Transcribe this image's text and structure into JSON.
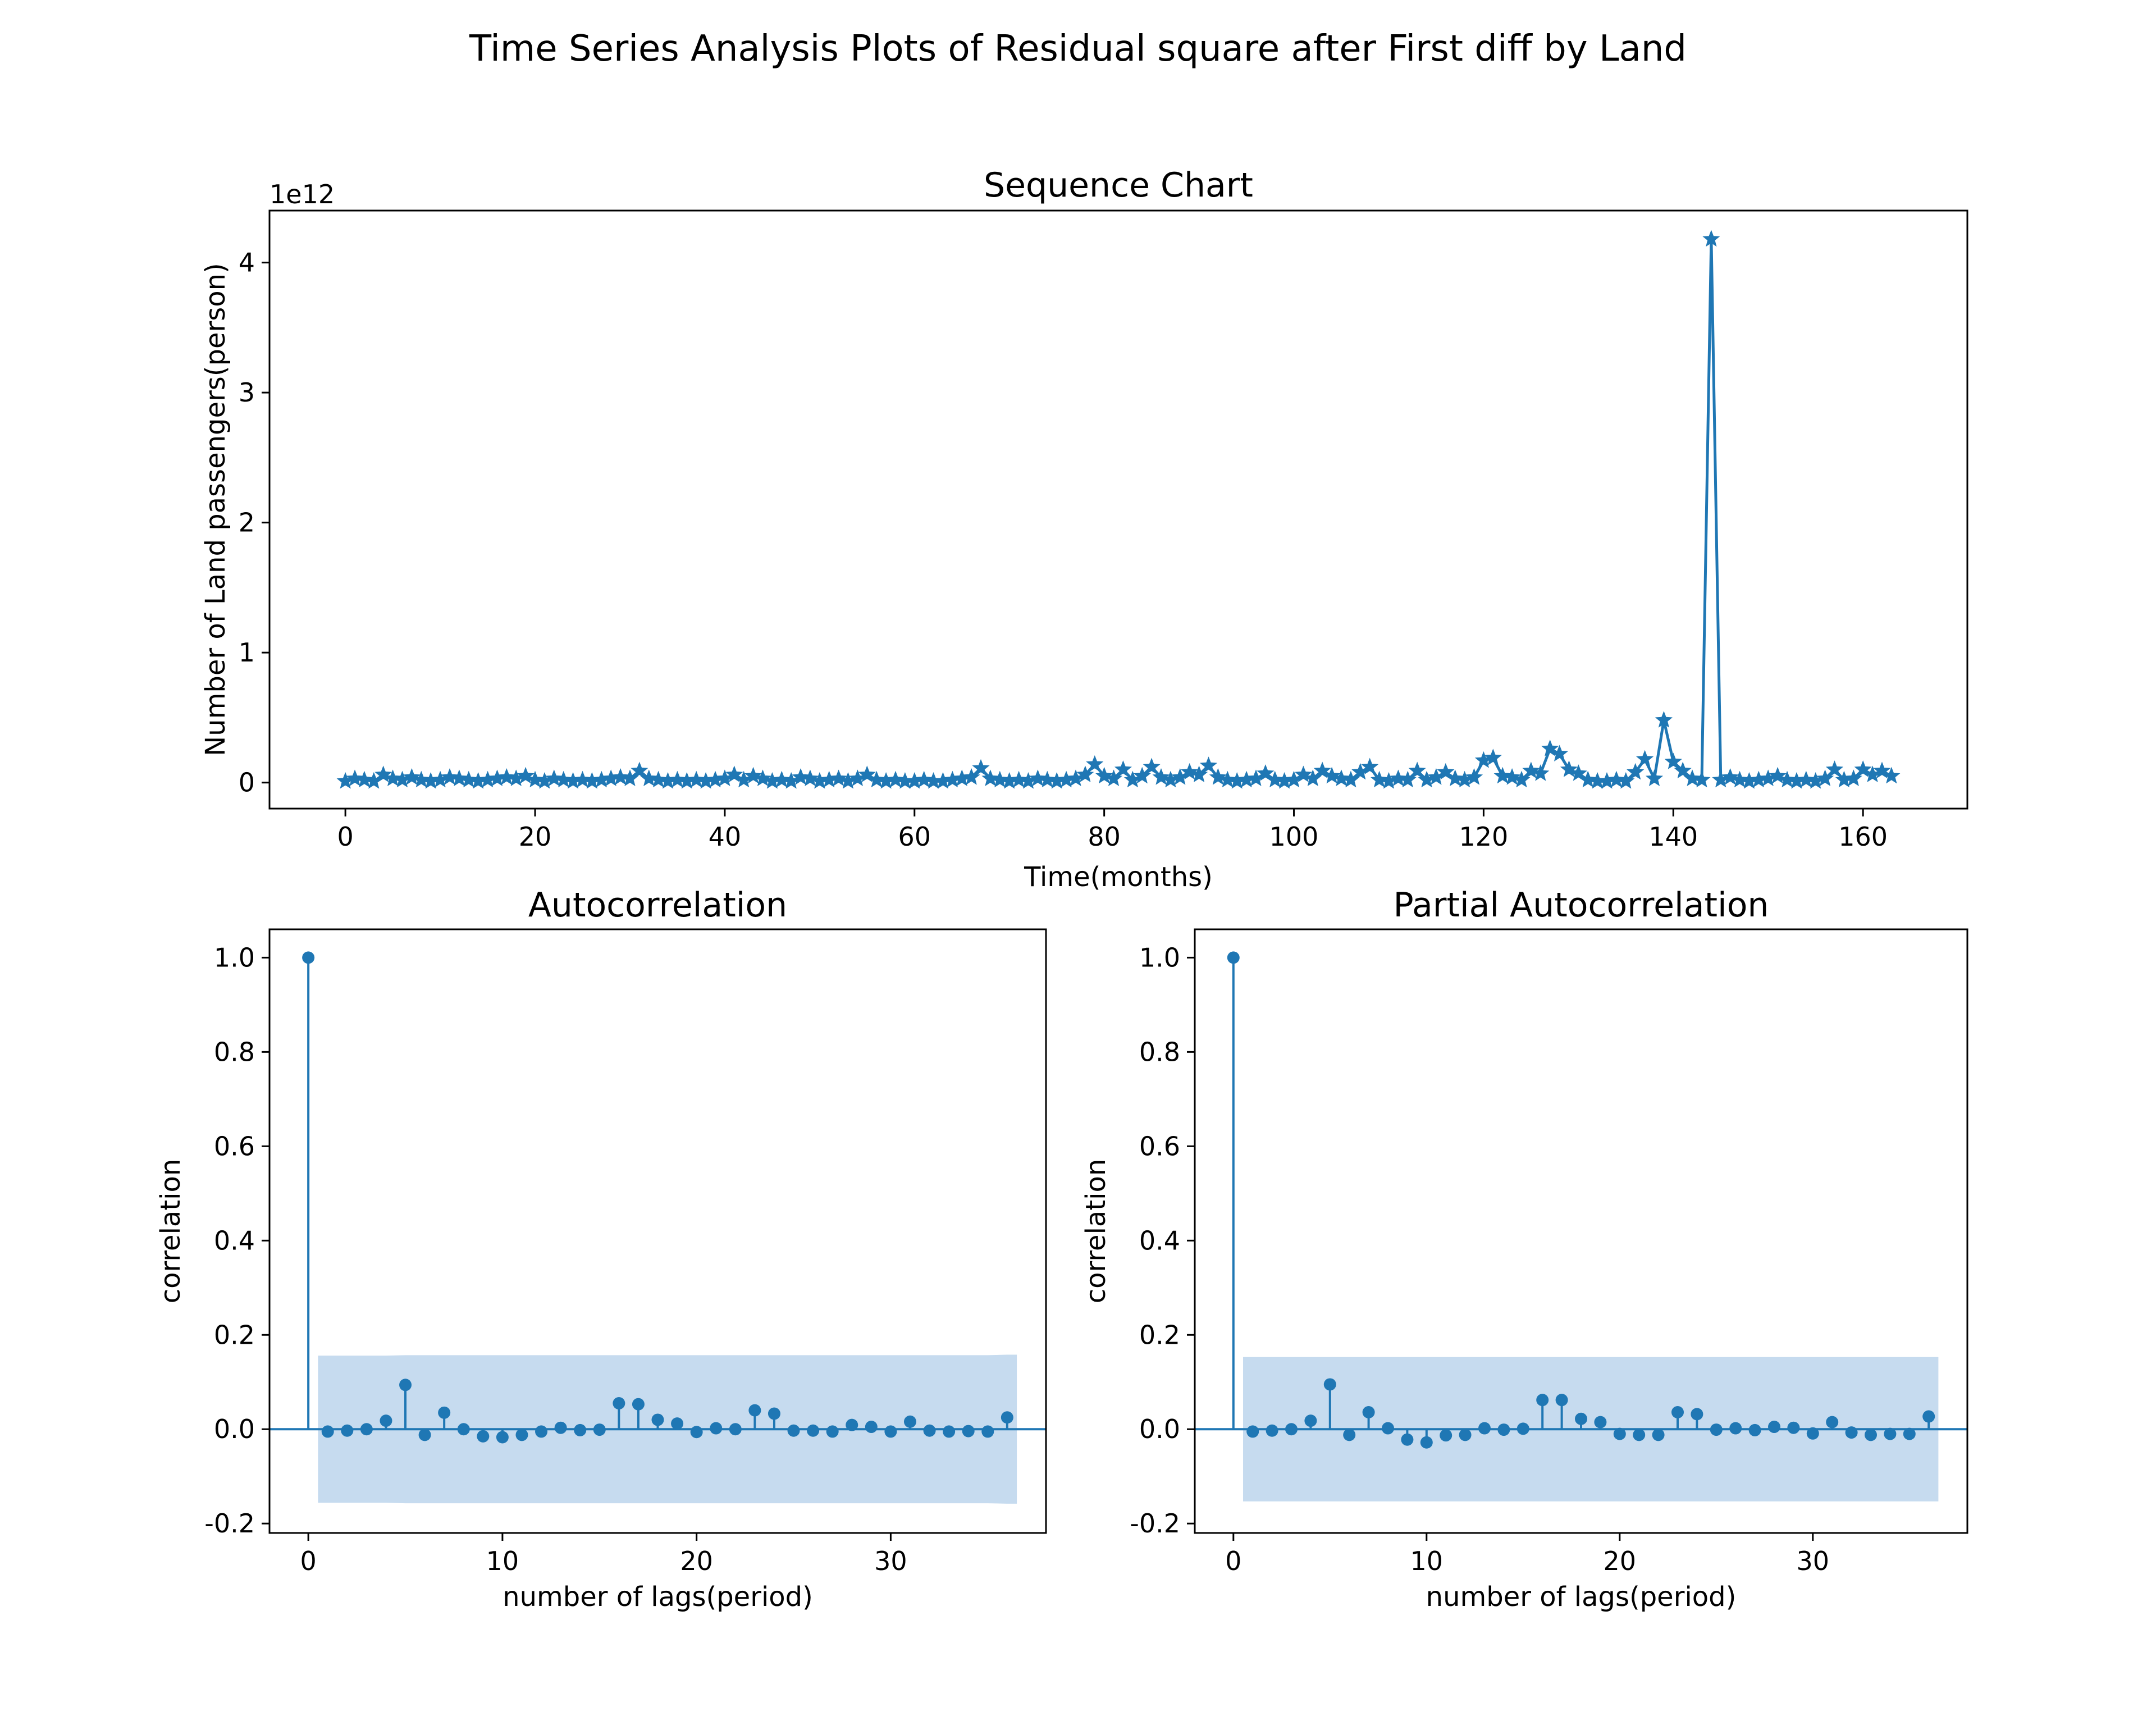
{
  "figure": {
    "title": "Time Series Analysis Plots of Residual square after First diff by Land"
  },
  "colors": {
    "series": "#1f77b4",
    "band": "#c6dbef"
  },
  "chart_data": [
    {
      "type": "line",
      "title": "Sequence Chart",
      "xlabel": "Time(months)",
      "ylabel": "Number of Land passengers(person)",
      "y_offset_label": "1e12",
      "marker": "star",
      "xlim": [
        -8,
        171
      ],
      "ylim": [
        -0.2,
        4.4
      ],
      "xticks": [
        0,
        20,
        40,
        60,
        80,
        100,
        120,
        140,
        160
      ],
      "yticks": [
        0,
        1,
        2,
        3,
        4
      ],
      "x_start": 0,
      "values": [
        0.01,
        0.03,
        0.02,
        0.01,
        0.06,
        0.03,
        0.02,
        0.04,
        0.02,
        0.01,
        0.02,
        0.04,
        0.03,
        0.02,
        0.01,
        0.02,
        0.03,
        0.04,
        0.03,
        0.05,
        0.02,
        0.01,
        0.03,
        0.02,
        0.01,
        0.02,
        0.01,
        0.02,
        0.03,
        0.04,
        0.03,
        0.09,
        0.03,
        0.02,
        0.01,
        0.02,
        0.01,
        0.02,
        0.01,
        0.02,
        0.03,
        0.06,
        0.02,
        0.05,
        0.03,
        0.01,
        0.02,
        0.01,
        0.04,
        0.03,
        0.01,
        0.02,
        0.03,
        0.01,
        0.03,
        0.06,
        0.02,
        0.01,
        0.02,
        0.01,
        0.01,
        0.02,
        0.01,
        0.01,
        0.02,
        0.03,
        0.04,
        0.11,
        0.03,
        0.02,
        0.01,
        0.02,
        0.01,
        0.03,
        0.02,
        0.01,
        0.02,
        0.03,
        0.06,
        0.14,
        0.05,
        0.03,
        0.1,
        0.02,
        0.05,
        0.12,
        0.04,
        0.02,
        0.04,
        0.08,
        0.06,
        0.13,
        0.04,
        0.02,
        0.01,
        0.02,
        0.03,
        0.07,
        0.02,
        0.01,
        0.02,
        0.06,
        0.03,
        0.09,
        0.05,
        0.03,
        0.02,
        0.08,
        0.12,
        0.02,
        0.01,
        0.03,
        0.02,
        0.09,
        0.02,
        0.04,
        0.08,
        0.03,
        0.02,
        0.04,
        0.17,
        0.19,
        0.05,
        0.04,
        0.02,
        0.09,
        0.07,
        0.26,
        0.22,
        0.1,
        0.07,
        0.02,
        0.01,
        0.01,
        0.02,
        0.01,
        0.08,
        0.18,
        0.03,
        0.48,
        0.16,
        0.09,
        0.03,
        0.02,
        4.18,
        0.02,
        0.04,
        0.02,
        0.01,
        0.02,
        0.03,
        0.05,
        0.02,
        0.01,
        0.02,
        0.01,
        0.03,
        0.1,
        0.02,
        0.03,
        0.1,
        0.06,
        0.09,
        0.05
      ]
    },
    {
      "type": "scatter",
      "style": "stem",
      "title": "Autocorrelation",
      "xlabel": "number of lags(period)",
      "ylabel": "correlation",
      "xlim": [
        -2,
        38
      ],
      "ylim": [
        -0.22,
        1.06
      ],
      "xticks": [
        0,
        10,
        20,
        30
      ],
      "ytick_labels": [
        "-0.2",
        "0.0",
        "0.2",
        "0.4",
        "0.6",
        "0.8",
        "1.0"
      ],
      "lags": [
        0,
        1,
        2,
        3,
        4,
        5,
        6,
        7,
        8,
        9,
        10,
        11,
        12,
        13,
        14,
        15,
        16,
        17,
        18,
        19,
        20,
        21,
        22,
        23,
        24,
        25,
        26,
        27,
        28,
        29,
        30,
        31,
        32,
        33,
        34,
        35,
        36
      ],
      "values": [
        1.0,
        -0.005,
        -0.003,
        0.0,
        0.018,
        0.094,
        -0.012,
        0.035,
        0.0,
        -0.015,
        -0.017,
        -0.012,
        -0.005,
        0.003,
        -0.002,
        -0.001,
        0.055,
        0.053,
        0.02,
        0.012,
        -0.006,
        0.002,
        0.0,
        0.04,
        0.033,
        -0.003,
        -0.003,
        -0.005,
        0.009,
        0.005,
        -0.005,
        0.016,
        -0.003,
        -0.005,
        -0.004,
        -0.005,
        0.025
      ],
      "confint": [
        0.155,
        0.156,
        0.156,
        0.156,
        0.156,
        0.157,
        0.157,
        0.157,
        0.157,
        0.157,
        0.157,
        0.157,
        0.157,
        0.157,
        0.157,
        0.157,
        0.157,
        0.157,
        0.157,
        0.157,
        0.157,
        0.157,
        0.157,
        0.157,
        0.157,
        0.157,
        0.157,
        0.157,
        0.157,
        0.157,
        0.157,
        0.157,
        0.157,
        0.157,
        0.157,
        0.157,
        0.158
      ]
    },
    {
      "type": "scatter",
      "style": "stem",
      "title": "Partial Autocorrelation",
      "xlabel": "number of lags(period)",
      "ylabel": "correlation",
      "xlim": [
        -2,
        38
      ],
      "ylim": [
        -0.22,
        1.06
      ],
      "xticks": [
        0,
        10,
        20,
        30
      ],
      "ytick_labels": [
        "-0.2",
        "0.0",
        "0.2",
        "0.4",
        "0.6",
        "0.8",
        "1.0"
      ],
      "lags": [
        0,
        1,
        2,
        3,
        4,
        5,
        6,
        7,
        8,
        9,
        10,
        11,
        12,
        13,
        14,
        15,
        16,
        17,
        18,
        19,
        20,
        21,
        22,
        23,
        24,
        25,
        26,
        27,
        28,
        29,
        30,
        31,
        32,
        33,
        34,
        35,
        36
      ],
      "values": [
        1.0,
        -0.005,
        -0.003,
        0.0,
        0.018,
        0.095,
        -0.012,
        0.036,
        0.002,
        -0.022,
        -0.028,
        -0.013,
        -0.012,
        0.002,
        -0.001,
        0.001,
        0.062,
        0.062,
        0.022,
        0.015,
        -0.01,
        -0.012,
        -0.012,
        0.036,
        0.032,
        -0.001,
        0.002,
        -0.002,
        0.005,
        0.003,
        -0.009,
        0.015,
        -0.007,
        -0.012,
        -0.01,
        -0.01,
        0.027
      ],
      "confint": [
        0.153,
        0.153,
        0.153,
        0.153,
        0.153,
        0.153,
        0.153,
        0.153,
        0.153,
        0.153,
        0.153,
        0.153,
        0.153,
        0.153,
        0.153,
        0.153,
        0.153,
        0.153,
        0.153,
        0.153,
        0.153,
        0.153,
        0.153,
        0.153,
        0.153,
        0.153,
        0.153,
        0.153,
        0.153,
        0.153,
        0.153,
        0.153,
        0.153,
        0.153,
        0.153,
        0.153,
        0.153
      ]
    }
  ]
}
